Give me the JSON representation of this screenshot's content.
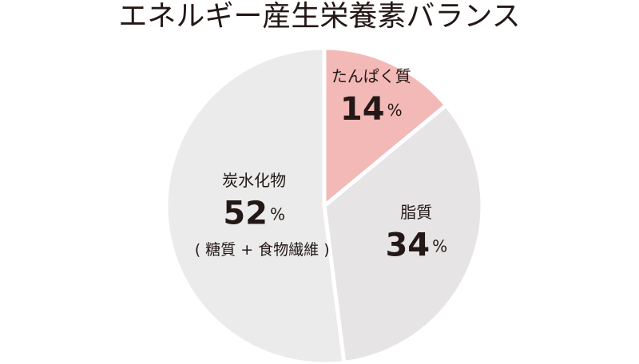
{
  "chart_data": {
    "type": "pie",
    "title": "エネルギー産生栄養素バランス",
    "categories": [
      "たんぱく質",
      "脂質",
      "炭水化物"
    ],
    "values": [
      14,
      34,
      52
    ],
    "unit": "%",
    "colors": [
      "#f2b9b7",
      "#e7e4e5",
      "#ebebeb"
    ],
    "annotation": "( 糖質 + 食物繊維 )"
  }
}
